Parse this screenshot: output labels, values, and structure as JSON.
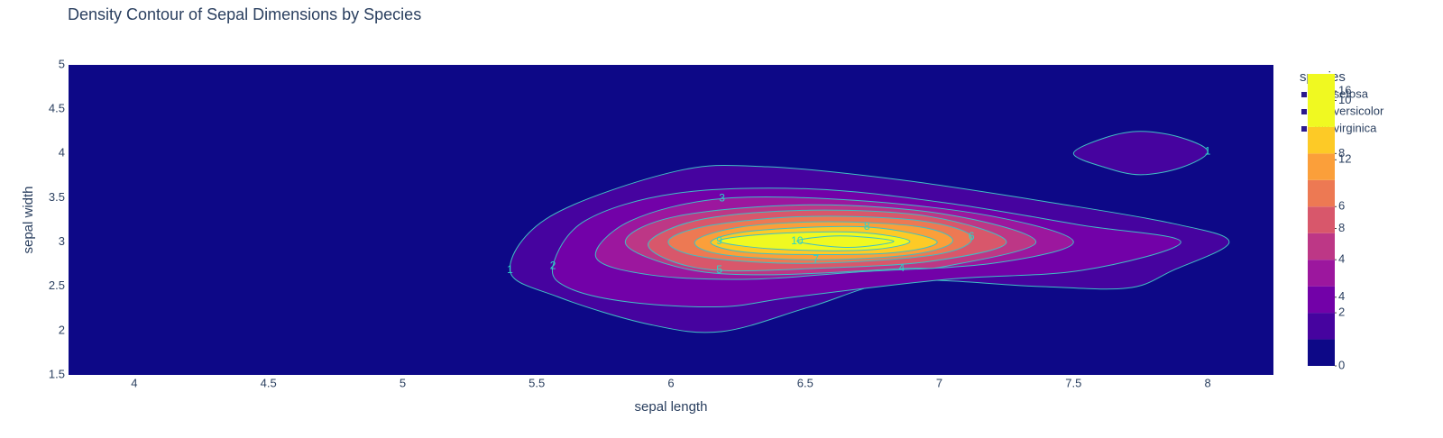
{
  "chart_data": {
    "type": "density_contour",
    "title": "Density Contour of Sepal Dimensions by Species",
    "x_label": "sepal length",
    "y_label": "sepal width",
    "xlim": [
      3.755,
      8.245
    ],
    "ylim": [
      1.5,
      5
    ],
    "xticks": [
      4,
      4.5,
      5,
      5.5,
      6,
      6.5,
      7,
      7.5,
      8
    ],
    "yticks": [
      1.5,
      2,
      2.5,
      3,
      3.5,
      4,
      4.5,
      5
    ],
    "line_color": "#3fbfc4",
    "label_color": "#2ad6c8",
    "legend_title": "species",
    "series": [
      {
        "name": "Iris-setosa",
        "color": "#2c1a8f"
      },
      {
        "name": "Iris-versicolor",
        "color": "#2c1a8f"
      },
      {
        "name": "Iris-virginica",
        "color": "#2c1a8f"
      }
    ],
    "colorbar": {
      "colors": [
        "#0d0887",
        "#46039f",
        "#7201a8",
        "#9c179e",
        "#bd3786",
        "#d8576b",
        "#ed7953",
        "#fb9f3a",
        "#fdca26",
        "#f0f921"
      ],
      "lim": [
        0,
        11
      ],
      "ticks": [
        0,
        2,
        4,
        6,
        8,
        10
      ],
      "lim2": [
        0,
        17
      ],
      "ticks2": [
        4,
        8,
        12,
        16
      ]
    },
    "contours": [
      {
        "level": 1,
        "x": [
          5.4,
          5.55,
          6.02,
          6.36,
          6.86,
          7.43,
          7.87,
          8.08,
          7.87,
          7.7,
          7.36,
          6.86,
          6.52,
          6.19,
          5.92,
          5.58
        ],
        "y": [
          2.68,
          3.29,
          3.8,
          3.85,
          3.7,
          3.44,
          3.21,
          3.0,
          2.68,
          2.48,
          2.5,
          2.56,
          2.27,
          1.99,
          2.07,
          2.38
        ]
      },
      {
        "level": 1,
        "x": [
          7.5,
          7.62,
          7.75,
          7.9,
          8.0,
          7.9,
          7.75,
          7.62
        ],
        "y": [
          4.0,
          4.18,
          4.25,
          4.18,
          4.02,
          3.84,
          3.76,
          3.84
        ]
      },
      {
        "level": 2,
        "x": [
          5.56,
          5.68,
          6.02,
          6.52,
          7.03,
          7.53,
          7.9,
          7.53,
          7.03,
          6.46,
          6.19,
          5.85,
          5.62
        ],
        "y": [
          2.73,
          3.24,
          3.55,
          3.6,
          3.44,
          3.19,
          3.0,
          2.68,
          2.58,
          2.38,
          2.27,
          2.32,
          2.48
        ]
      },
      {
        "level": 3,
        "x": [
          5.72,
          5.85,
          6.19,
          6.69,
          7.2,
          7.5,
          7.2,
          6.69,
          6.29,
          5.92
        ],
        "y": [
          2.83,
          3.24,
          3.49,
          3.47,
          3.29,
          3.0,
          2.76,
          2.66,
          2.58,
          2.63
        ]
      },
      {
        "level": 4,
        "x": [
          5.83,
          6.02,
          6.52,
          7.03,
          7.36,
          7.03,
          6.86,
          6.36,
          6.05
        ],
        "y": [
          2.99,
          3.29,
          3.42,
          3.31,
          3.0,
          2.73,
          2.7,
          2.63,
          2.7
        ]
      },
      {
        "level": 5,
        "x": [
          5.92,
          6.12,
          6.52,
          6.96,
          7.25,
          6.96,
          6.52,
          6.18,
          5.99
        ],
        "y": [
          3.01,
          3.26,
          3.36,
          3.29,
          3.0,
          2.78,
          2.7,
          2.68,
          2.8
        ]
      },
      {
        "level": 6,
        "x": [
          5.99,
          6.15,
          6.52,
          6.93,
          7.12,
          6.99,
          6.52,
          6.12
        ],
        "y": [
          3.01,
          3.19,
          3.29,
          3.24,
          3.06,
          2.86,
          2.76,
          2.83
        ]
      },
      {
        "level": 7,
        "x": [
          6.09,
          6.26,
          6.59,
          6.93,
          7.05,
          6.9,
          6.54,
          6.19
        ],
        "y": [
          3.01,
          3.17,
          3.23,
          3.17,
          3.01,
          2.86,
          2.8,
          2.86
        ]
      },
      {
        "level": 8,
        "x": [
          6.15,
          6.32,
          6.73,
          6.99,
          6.83,
          6.46,
          6.24
        ],
        "y": [
          3.01,
          3.13,
          3.17,
          3.01,
          2.88,
          2.86,
          2.9
        ]
      },
      {
        "level": 9,
        "x": [
          6.18,
          6.36,
          6.69,
          6.89,
          6.73,
          6.39
        ],
        "y": [
          3.01,
          3.09,
          3.11,
          3.01,
          2.91,
          2.92
        ]
      },
      {
        "level": 10,
        "x": [
          6.47,
          6.63,
          6.83,
          6.66
        ],
        "y": [
          3.01,
          3.07,
          3.01,
          2.94
        ]
      }
    ]
  }
}
